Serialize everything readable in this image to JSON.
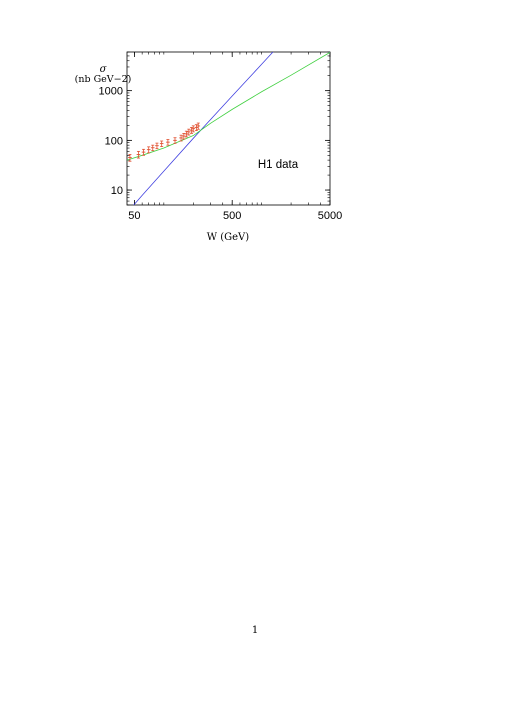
{
  "chart_data": {
    "type": "line",
    "yaxis_symbol": "σ",
    "yaxis_unit": "(nb GeV−2)",
    "xaxis_label": "W (GeV)",
    "x_scale": "log",
    "y_scale": "log",
    "xlim": [
      42,
      5000
    ],
    "ylim": [
      5,
      6000
    ],
    "x_ticks": [
      {
        "value": 50,
        "label": "50"
      },
      {
        "value": 500,
        "label": "500"
      },
      {
        "value": 5000,
        "label": "5000"
      }
    ],
    "y_ticks": [
      {
        "value": 10,
        "label": "10"
      },
      {
        "value": 100,
        "label": "100"
      },
      {
        "value": 1000,
        "label": "1000"
      }
    ],
    "annotation": "H1 data",
    "grid": false,
    "series": [
      {
        "type": "line",
        "color": "#4040e0",
        "x": [
          42,
          60,
          100,
          200,
          500,
          1000,
          2000,
          5000
        ],
        "y": [
          3.5,
          7.8,
          24,
          110,
          780,
          3400,
          15000,
          5900
        ]
      },
      {
        "type": "line",
        "color": "#40d040",
        "x": [
          42,
          60,
          100,
          200,
          300,
          500,
          1000,
          2000,
          5000
        ],
        "y": [
          40,
          50,
          70,
          125,
          220,
          420,
          950,
          2050,
          5900
        ]
      },
      {
        "type": "scatter-errorbar",
        "color": "#e05030",
        "x": [
          45,
          55,
          62,
          70,
          77,
          85,
          95,
          110,
          130,
          150,
          160,
          170,
          180,
          192,
          200,
          215,
          225
        ],
        "y": [
          45,
          52,
          58,
          65,
          71,
          78,
          86,
          92,
          100,
          112,
          122,
          135,
          148,
          160,
          172,
          182,
          195
        ],
        "err": [
          7,
          8,
          8,
          9,
          9,
          10,
          11,
          12,
          13,
          15,
          16,
          18,
          20,
          22,
          24,
          25,
          28
        ]
      }
    ]
  },
  "page": {
    "number": "1"
  }
}
